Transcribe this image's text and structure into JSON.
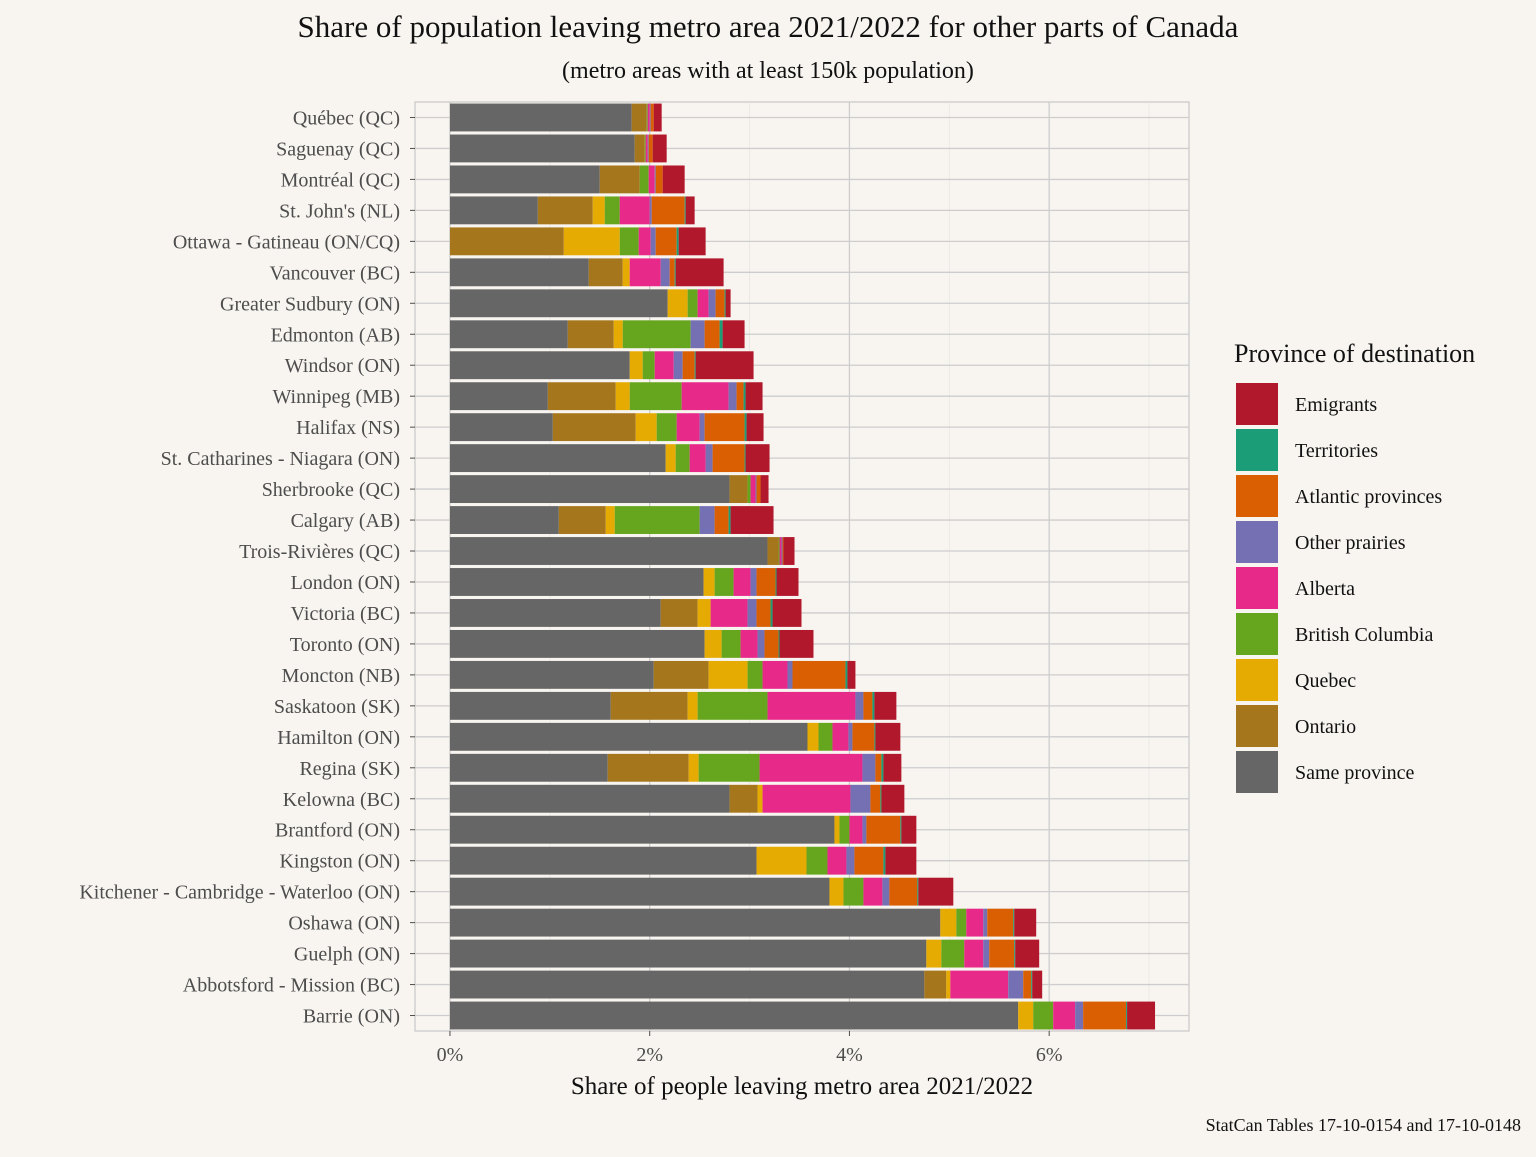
{
  "chart_data": {
    "type": "bar",
    "orientation": "horizontal",
    "stacked": true,
    "title": "Share of population leaving metro area 2021/2022 for other parts of Canada",
    "subtitle": "(metro areas with at least 150k population)",
    "xlabel": "Share of people leaving metro area 2021/2022",
    "ylabel": "",
    "caption": "StatCan Tables 17-10-0154 and 17-10-0148",
    "xlim": [
      -0.35,
      7.4
    ],
    "x_ticks": [
      0,
      2,
      4,
      6
    ],
    "x_tick_labels": [
      "0%",
      "2%",
      "4%",
      "6%"
    ],
    "grid": true,
    "legend": {
      "title": "Province of destination",
      "position": "right",
      "entries": [
        "Emigrants",
        "Territories",
        "Atlantic provinces",
        "Other prairies",
        "Alberta",
        "British Columbia",
        "Quebec",
        "Ontario",
        "Same province"
      ]
    },
    "categories": [
      "Québec  (QC)",
      "Saguenay  (QC)",
      "Montréal  (QC)",
      "St. John's  (NL)",
      "Ottawa - Gatineau  (ON/CQ)",
      "Vancouver  (BC)",
      "Greater Sudbury  (ON)",
      "Edmonton  (AB)",
      "Windsor  (ON)",
      "Winnipeg  (MB)",
      "Halifax  (NS)",
      "St. Catharines - Niagara  (ON)",
      "Sherbrooke  (QC)",
      "Calgary  (AB)",
      "Trois-Rivières  (QC)",
      "London  (ON)",
      "Victoria  (BC)",
      "Toronto  (ON)",
      "Moncton  (NB)",
      "Saskatoon  (SK)",
      "Hamilton  (ON)",
      "Regina  (SK)",
      "Kelowna  (BC)",
      "Brantford  (ON)",
      "Kingston  (ON)",
      "Kitchener - Cambridge - Waterloo  (ON)",
      "Oshawa  (ON)",
      "Guelph  (ON)",
      "Abbotsford - Mission  (BC)",
      "Barrie  (ON)"
    ],
    "series": [
      {
        "name": "Same province",
        "color": "#666666",
        "values": [
          1.82,
          1.85,
          1.5,
          0.88,
          0.0,
          1.39,
          2.18,
          1.18,
          1.8,
          0.98,
          1.03,
          2.16,
          2.8,
          1.09,
          3.18,
          2.54,
          2.11,
          2.55,
          2.04,
          1.61,
          3.58,
          1.58,
          2.8,
          3.85,
          3.07,
          3.8,
          4.91,
          4.77,
          4.75,
          5.69
        ]
      },
      {
        "name": "Ontario",
        "color": "#a6761d",
        "values": [
          0.15,
          0.1,
          0.4,
          0.55,
          1.14,
          0.34,
          0.0,
          0.46,
          0.0,
          0.68,
          0.83,
          0.0,
          0.18,
          0.47,
          0.11,
          0.0,
          0.37,
          0.0,
          0.55,
          0.77,
          0.0,
          0.81,
          0.28,
          0.0,
          0.0,
          0.0,
          0.0,
          0.0,
          0.22,
          0.0
        ]
      },
      {
        "name": "Quebec",
        "color": "#e6ab02",
        "values": [
          0.0,
          0.0,
          0.0,
          0.12,
          0.56,
          0.07,
          0.2,
          0.09,
          0.13,
          0.14,
          0.21,
          0.1,
          0.0,
          0.09,
          0.0,
          0.11,
          0.13,
          0.17,
          0.39,
          0.1,
          0.11,
          0.1,
          0.05,
          0.05,
          0.5,
          0.14,
          0.16,
          0.15,
          0.04,
          0.15
        ]
      },
      {
        "name": "British Columbia",
        "color": "#66a61e",
        "values": [
          0.01,
          0.01,
          0.09,
          0.15,
          0.19,
          0.0,
          0.1,
          0.68,
          0.12,
          0.52,
          0.2,
          0.14,
          0.03,
          0.85,
          0.01,
          0.19,
          0.0,
          0.19,
          0.15,
          0.7,
          0.14,
          0.61,
          0.0,
          0.1,
          0.21,
          0.2,
          0.1,
          0.23,
          0.0,
          0.2
        ]
      },
      {
        "name": "Alberta",
        "color": "#e7298a",
        "values": [
          0.02,
          0.02,
          0.06,
          0.3,
          0.12,
          0.31,
          0.11,
          0.0,
          0.19,
          0.47,
          0.23,
          0.16,
          0.05,
          0.0,
          0.02,
          0.17,
          0.37,
          0.17,
          0.25,
          0.88,
          0.16,
          1.03,
          0.88,
          0.13,
          0.19,
          0.19,
          0.17,
          0.19,
          0.58,
          0.22
        ]
      },
      {
        "name": "Other prairies",
        "color": "#7570b3",
        "values": [
          0.01,
          0.01,
          0.01,
          0.02,
          0.05,
          0.09,
          0.07,
          0.14,
          0.09,
          0.08,
          0.05,
          0.07,
          0.01,
          0.15,
          0.01,
          0.06,
          0.09,
          0.07,
          0.05,
          0.08,
          0.04,
          0.13,
          0.2,
          0.04,
          0.08,
          0.07,
          0.04,
          0.06,
          0.15,
          0.08
        ]
      },
      {
        "name": "Atlantic provinces",
        "color": "#d95f02",
        "values": [
          0.03,
          0.04,
          0.07,
          0.33,
          0.21,
          0.05,
          0.09,
          0.15,
          0.12,
          0.07,
          0.4,
          0.32,
          0.04,
          0.14,
          0.01,
          0.19,
          0.14,
          0.14,
          0.53,
          0.09,
          0.22,
          0.06,
          0.1,
          0.34,
          0.29,
          0.28,
          0.26,
          0.25,
          0.08,
          0.43
        ]
      },
      {
        "name": "Territories",
        "color": "#1b9e77",
        "values": [
          0.0,
          0.0,
          0.0,
          0.01,
          0.02,
          0.01,
          0.01,
          0.03,
          0.01,
          0.02,
          0.02,
          0.01,
          0.0,
          0.02,
          0.0,
          0.01,
          0.02,
          0.01,
          0.02,
          0.02,
          0.01,
          0.02,
          0.01,
          0.01,
          0.02,
          0.01,
          0.01,
          0.01,
          0.01,
          0.01
        ]
      },
      {
        "name": "Emigrants",
        "color": "#b2182b",
        "values": [
          0.08,
          0.14,
          0.22,
          0.09,
          0.27,
          0.48,
          0.05,
          0.22,
          0.58,
          0.17,
          0.17,
          0.24,
          0.08,
          0.43,
          0.11,
          0.22,
          0.29,
          0.34,
          0.08,
          0.22,
          0.25,
          0.18,
          0.23,
          0.15,
          0.31,
          0.35,
          0.22,
          0.24,
          0.1,
          0.28
        ]
      }
    ]
  }
}
